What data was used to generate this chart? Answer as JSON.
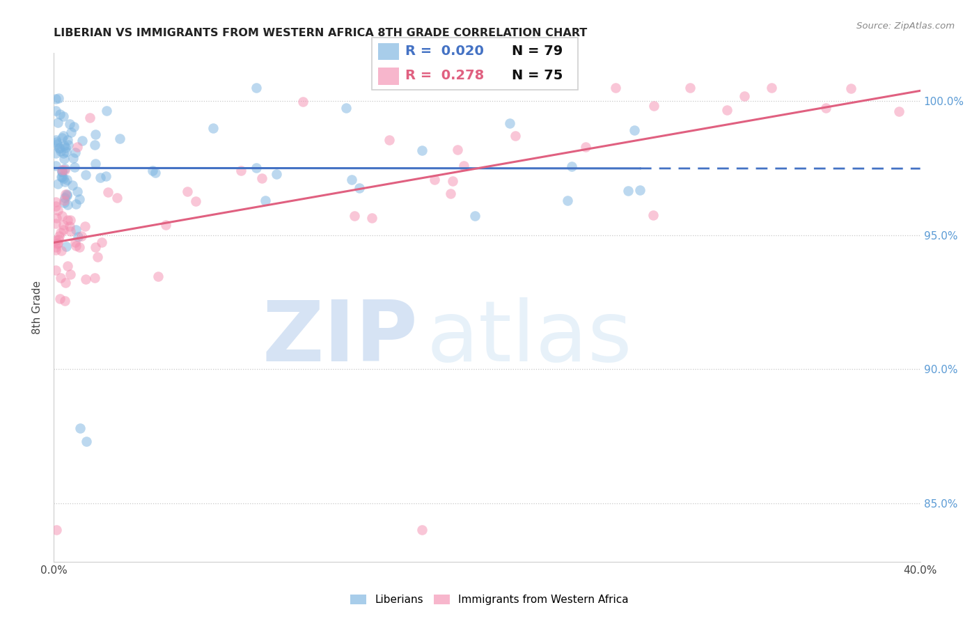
{
  "title": "LIBERIAN VS IMMIGRANTS FROM WESTERN AFRICA 8TH GRADE CORRELATION CHART",
  "source": "Source: ZipAtlas.com",
  "ylabel": "8th Grade",
  "ylabel_ticks": [
    "85.0%",
    "90.0%",
    "95.0%",
    "100.0%"
  ],
  "ylabel_tick_vals": [
    0.85,
    0.9,
    0.95,
    1.0
  ],
  "xlim": [
    0.0,
    0.4
  ],
  "ylim": [
    0.828,
    1.018
  ],
  "xtick_vals": [
    0.0,
    0.1,
    0.2,
    0.3,
    0.4
  ],
  "xtick_labels": [
    "0.0%",
    "",
    "",
    "",
    "40.0%"
  ],
  "legend_blue_r": "R = 0.020",
  "legend_blue_n": "N = 79",
  "legend_pink_r": "R = 0.278",
  "legend_pink_n": "N = 75",
  "watermark_zip": "ZIP",
  "watermark_atlas": "atlas",
  "background_color": "#ffffff",
  "blue_color": "#7ab3e0",
  "pink_color": "#f48fb1",
  "trend_blue_color": "#4472c4",
  "trend_pink_color": "#e06080",
  "grid_color": "#c8c8c8",
  "ytick_label_color": "#5b9bd5",
  "legend_border_color": "#d0d0d0"
}
